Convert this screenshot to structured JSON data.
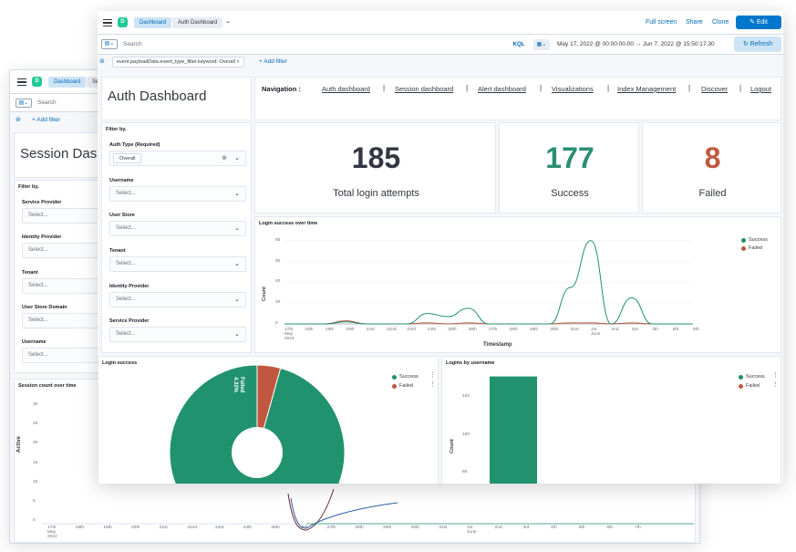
{
  "back": {
    "breadcrumb": [
      "Dashboard",
      "Se"
    ],
    "search_placeholder": "Search",
    "add_filter": "+ Add filter",
    "title": "Session Dash",
    "filter_heading": "Filter by,",
    "filters": [
      {
        "label": "Service Provider",
        "value": "Select..."
      },
      {
        "label": "Identity Provider",
        "value": "Select..."
      },
      {
        "label": "Tenant",
        "value": "Select..."
      },
      {
        "label": "User Store Domain",
        "value": "Select..."
      },
      {
        "label": "Username",
        "value": "Select..."
      }
    ],
    "chart_title": "Session count over time",
    "ylabel": "Active",
    "yticks": [
      "30",
      "25",
      "20",
      "15",
      "10",
      "5",
      "0"
    ],
    "xticks": [
      "17th\nMay\n2022",
      "18th",
      "19th",
      "20th",
      "21st",
      "22nd",
      "23rd",
      "24th",
      "25th",
      "26th",
      "27th",
      "28th",
      "29th",
      "30th",
      "31st",
      "1st\nJune",
      "2nd",
      "3rd",
      "4th",
      "5th",
      "6th",
      "7th"
    ]
  },
  "front": {
    "breadcrumb": [
      "Dashboard",
      "Auth Dashboard"
    ],
    "top_actions": [
      "Full screen",
      "Share",
      "Clone"
    ],
    "edit_label": "Edit",
    "search_placeholder": "Search",
    "kql": "KQL",
    "date_range": "May 17, 2022 @ 00:00:00.00  →  Jun 7, 2022 @ 15:50:17.30",
    "refresh_label": "Refresh",
    "filter_pill": "event.payloadData.event_type_filter.keyword: Overall",
    "add_filter": "+ Add filter",
    "title": "Auth Dashboard",
    "nav_label": "Navigation :",
    "nav_links": [
      "Auth dashboard",
      "Session dashboard",
      "Alert dashboard",
      "Visualizations",
      "Index Management",
      "Discover",
      "Logout"
    ],
    "filter_heading": "Filter by,",
    "filters": [
      {
        "label": "Auth Type (Required)",
        "value": "Overall"
      },
      {
        "label": "Username",
        "value": "Select..."
      },
      {
        "label": "User Store",
        "value": "Select..."
      },
      {
        "label": "Tenant",
        "value": "Select..."
      },
      {
        "label": "Identity Provider",
        "value": "Select..."
      },
      {
        "label": "Service Provider",
        "value": "Select..."
      }
    ],
    "metrics": [
      {
        "value": "185",
        "label": "Total login attempts",
        "color": "#343741"
      },
      {
        "value": "177",
        "label": "Success",
        "color": "#2b8f73"
      },
      {
        "value": "8",
        "label": "Failed",
        "color": "#c25741"
      }
    ],
    "line_chart_title": "Login success over time",
    "pie_title": "Login success",
    "bar_title": "Logins by username",
    "legend": [
      {
        "name": "Success",
        "color": "#20926e"
      },
      {
        "name": "Failed",
        "color": "#c25741"
      }
    ],
    "pie_failed_label": "Failed\n4.32%"
  },
  "chart_data": [
    {
      "type": "line",
      "title": "Login success over time",
      "xlabel": "Timestamp",
      "ylabel": "Count",
      "ylim": [
        0,
        85
      ],
      "yticks": [
        0,
        20,
        40,
        60,
        80
      ],
      "categories": [
        "17th May 2022",
        "18th",
        "19th",
        "20th",
        "21st",
        "22nd",
        "23rd",
        "24th",
        "25th",
        "26th",
        "27th",
        "28th",
        "29th",
        "30th",
        "31st",
        "1st June",
        "2nd",
        "3rd",
        "4th",
        "5th",
        "6th"
      ],
      "series": [
        {
          "name": "Success",
          "values": [
            0,
            0,
            0,
            2,
            0,
            0,
            0,
            10,
            7,
            15,
            0,
            0,
            0,
            0,
            35,
            80,
            0,
            25,
            0,
            0,
            0
          ]
        },
        {
          "name": "Failed",
          "values": [
            0,
            0,
            0,
            3,
            0,
            0,
            0,
            1,
            0,
            1,
            0,
            0,
            0,
            0,
            1,
            1,
            0,
            1,
            0,
            0,
            0
          ]
        }
      ],
      "legend": "top-right"
    },
    {
      "type": "pie",
      "title": "Login success",
      "categories": [
        "Success",
        "Failed"
      ],
      "values": [
        95.68,
        4.32
      ],
      "donut": true,
      "legend": "top-right"
    },
    {
      "type": "bar",
      "title": "Logins by username",
      "ylabel": "Count",
      "yticks": [
        50,
        100,
        150
      ],
      "categories": [
        ""
      ],
      "values": [
        177
      ],
      "legend": "top-right"
    }
  ]
}
